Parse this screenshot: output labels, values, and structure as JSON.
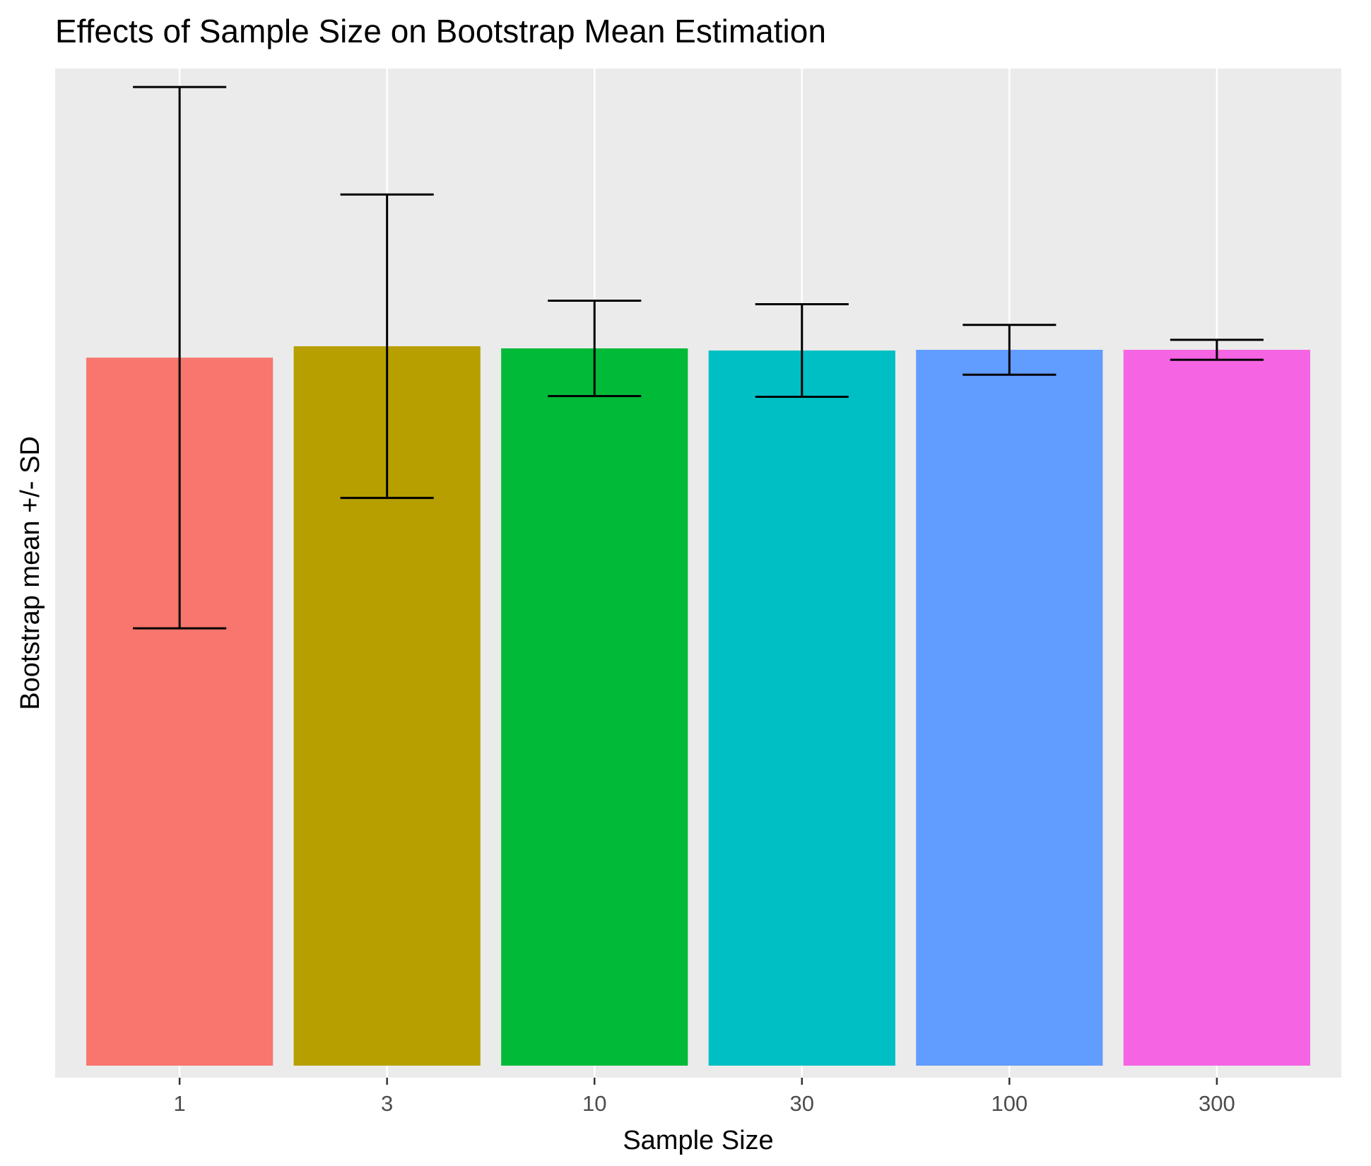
{
  "chart_data": {
    "type": "bar",
    "title": "Effects of Sample Size on Bootstrap Mean Estimation",
    "xlabel": "Sample Size",
    "ylabel": "Bootstrap mean +/- SD",
    "categories": [
      "1",
      "3",
      "10",
      "30",
      "100",
      "300"
    ],
    "values": [
      0.994,
      1.01,
      1.007,
      1.004,
      1.005,
      1.005
    ],
    "error_sd": [
      0.38,
      0.213,
      0.067,
      0.065,
      0.035,
      0.014
    ],
    "colors": [
      "#F8766D",
      "#B79F00",
      "#00BA38",
      "#00BFC4",
      "#619CFF",
      "#F564E3"
    ],
    "ylim": [
      0,
      1.384
    ],
    "y_tick_labels_shown": false,
    "grid": true,
    "legend": "none",
    "panel_background": "#EBEBEB",
    "gridline_color": "#FFFFFF"
  }
}
